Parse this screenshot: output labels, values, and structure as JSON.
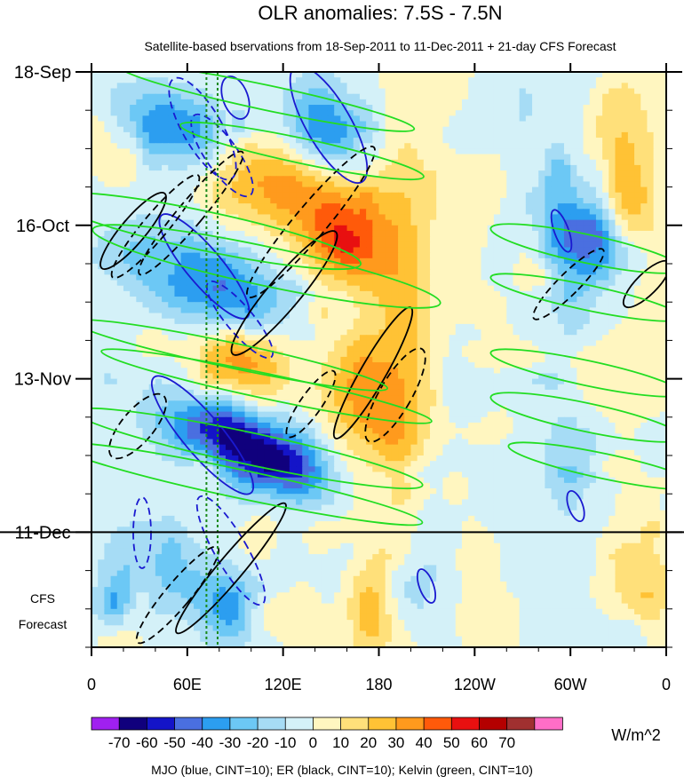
{
  "chart_data": {
    "type": "heatmap",
    "title": "OLR anomalies: 7.5S - 7.5N",
    "subtitle": "Satellite-based bservations from 18-Sep-2011 to 11-Dec-2011 + 21-day CFS Forecast",
    "forecast_label_line1": "CFS",
    "forecast_label_line2": "Forecast",
    "x_ticks": [
      {
        "lon": 0,
        "label": "0"
      },
      {
        "lon": 60,
        "label": "60E"
      },
      {
        "lon": 120,
        "label": "120E"
      },
      {
        "lon": 180,
        "label": "180"
      },
      {
        "lon": 240,
        "label": "120W"
      },
      {
        "lon": 300,
        "label": "60W"
      },
      {
        "lon": 360,
        "label": "0"
      }
    ],
    "y_ticks": [
      {
        "day": 0,
        "label": "18-Sep"
      },
      {
        "day": 28,
        "label": "16-Oct"
      },
      {
        "day": 56,
        "label": "13-Nov"
      },
      {
        "day": 84,
        "label": "11-Dec"
      }
    ],
    "y_range_days": [
      0,
      105
    ],
    "x_range_lon": [
      0,
      360
    ],
    "observation_end_day": 84,
    "reference_lines_lon": [
      72,
      79
    ],
    "colorbar": {
      "unit": "W/m^2",
      "levels": [
        "-70",
        "-60",
        "-50",
        "-40",
        "-30",
        "-20",
        "-10",
        "0",
        "10",
        "20",
        "30",
        "40",
        "50",
        "60",
        "70"
      ],
      "colors": [
        "#a020f0",
        "#10007d",
        "#1414c8",
        "#4a6fe0",
        "#2c9ef0",
        "#6cc8f5",
        "#a6dcf5",
        "#d4f1f8",
        "#fff6c0",
        "#ffe07a",
        "#ffc235",
        "#ff9a1d",
        "#ff5a0a",
        "#e81010",
        "#b40000",
        "#a03030",
        "#ff6ec7"
      ]
    },
    "footnote": "MJO (blue, CINT=10); ER (black, CINT=10); Kelvin (green, CINT=10)"
  }
}
